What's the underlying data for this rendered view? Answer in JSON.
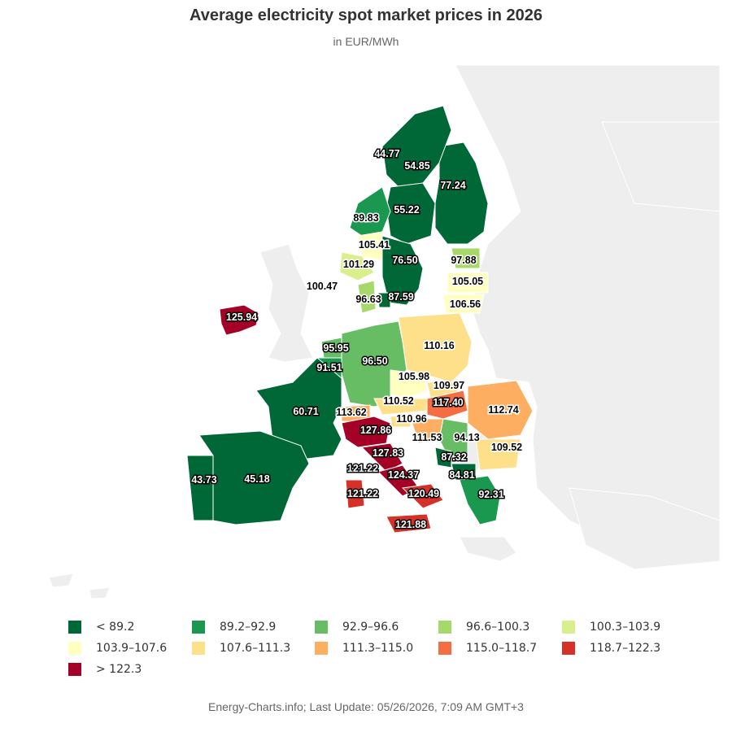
{
  "title": "Average electricity spot market prices in 2026",
  "subtitle": "in EUR/MWh",
  "credits": "Energy-Charts.info; Last Update: 05/26/2026, 7:09 AM GMT+3",
  "legend": [
    {
      "label": "< 89.2",
      "color": "#006837"
    },
    {
      "label": "89.2–92.9",
      "color": "#1a9850"
    },
    {
      "label": "92.9–96.6",
      "color": "#66bd63"
    },
    {
      "label": "96.6–100.3",
      "color": "#a6d96a"
    },
    {
      "label": "100.3–103.9",
      "color": "#d9ef8b"
    },
    {
      "label": "103.9–107.6",
      "color": "#ffffbf"
    },
    {
      "label": "107.6–111.3",
      "color": "#fee08b"
    },
    {
      "label": "111.3–115.0",
      "color": "#fdae61"
    },
    {
      "label": "115.0–118.7",
      "color": "#f46d43"
    },
    {
      "label": "118.7–122.3",
      "color": "#d73027"
    },
    {
      "label": "> 122.3",
      "color": "#a50026"
    }
  ],
  "map_regions": [
    {
      "id": "se1",
      "value": "44.77",
      "color": "#006837"
    },
    {
      "id": "se2",
      "value": "54.85",
      "color": "#006837"
    },
    {
      "id": "fi",
      "value": "77.24",
      "color": "#006837"
    },
    {
      "id": "se3",
      "value": "55.22",
      "color": "#006837"
    },
    {
      "id": "no3",
      "value": "89.83",
      "color": "#1a9850"
    },
    {
      "id": "no1",
      "value": "105.41",
      "color": "#ffffbf"
    },
    {
      "id": "no2",
      "value": "101.29",
      "color": "#d9ef8b"
    },
    {
      "id": "se4",
      "value": "76.50",
      "color": "#006837"
    },
    {
      "id": "ee",
      "value": "97.88",
      "color": "#a6d96a"
    },
    {
      "id": "no-sea",
      "value": "100.47",
      "color": "#d9ef8b"
    },
    {
      "id": "lv",
      "value": "105.05",
      "color": "#ffffbf"
    },
    {
      "id": "dk1",
      "value": "96.63",
      "color": "#a6d96a"
    },
    {
      "id": "dk2",
      "value": "87.59",
      "color": "#006837"
    },
    {
      "id": "lt",
      "value": "106.56",
      "color": "#ffffbf"
    },
    {
      "id": "ie",
      "value": "125.94",
      "color": "#a50026"
    },
    {
      "id": "pl",
      "value": "110.16",
      "color": "#fee08b"
    },
    {
      "id": "nl",
      "value": "95.95",
      "color": "#66bd63"
    },
    {
      "id": "de",
      "value": "96.50",
      "color": "#66bd63"
    },
    {
      "id": "be",
      "value": "91.51",
      "color": "#1a9850"
    },
    {
      "id": "cz",
      "value": "105.98",
      "color": "#ffffbf"
    },
    {
      "id": "sk",
      "value": "109.97",
      "color": "#fee08b"
    },
    {
      "id": "fr",
      "value": "60.71",
      "color": "#006837"
    },
    {
      "id": "at",
      "value": "110.52",
      "color": "#fee08b"
    },
    {
      "id": "hu",
      "value": "117.40",
      "color": "#f46d43"
    },
    {
      "id": "ro",
      "value": "112.74",
      "color": "#fdae61"
    },
    {
      "id": "ch",
      "value": "113.62",
      "color": "#fdae61"
    },
    {
      "id": "it-north",
      "value": "127.86",
      "color": "#a50026"
    },
    {
      "id": "si",
      "value": "110.96",
      "color": "#fee08b"
    },
    {
      "id": "hr",
      "value": "111.53",
      "color": "#fdae61"
    },
    {
      "id": "rs",
      "value": "94.13",
      "color": "#66bd63"
    },
    {
      "id": "bg",
      "value": "109.52",
      "color": "#fee08b"
    },
    {
      "id": "it-cnor",
      "value": "127.83",
      "color": "#a50026"
    },
    {
      "id": "me",
      "value": "87.32",
      "color": "#006837"
    },
    {
      "id": "mk",
      "value": "84.81",
      "color": "#006837"
    },
    {
      "id": "it-sard",
      "value": "121.22",
      "color": "#d73027"
    },
    {
      "id": "it-csud",
      "value": "124.37",
      "color": "#a50026"
    },
    {
      "id": "pt",
      "value": "43.73",
      "color": "#006837"
    },
    {
      "id": "es",
      "value": "45.18",
      "color": "#006837"
    },
    {
      "id": "it-sard2",
      "value": "121.22",
      "color": "#d73027"
    },
    {
      "id": "it-sud",
      "value": "120.49",
      "color": "#d73027"
    },
    {
      "id": "gr",
      "value": "92.31",
      "color": "#1a9850"
    },
    {
      "id": "it-sici",
      "value": "121.88",
      "color": "#d73027"
    }
  ]
}
